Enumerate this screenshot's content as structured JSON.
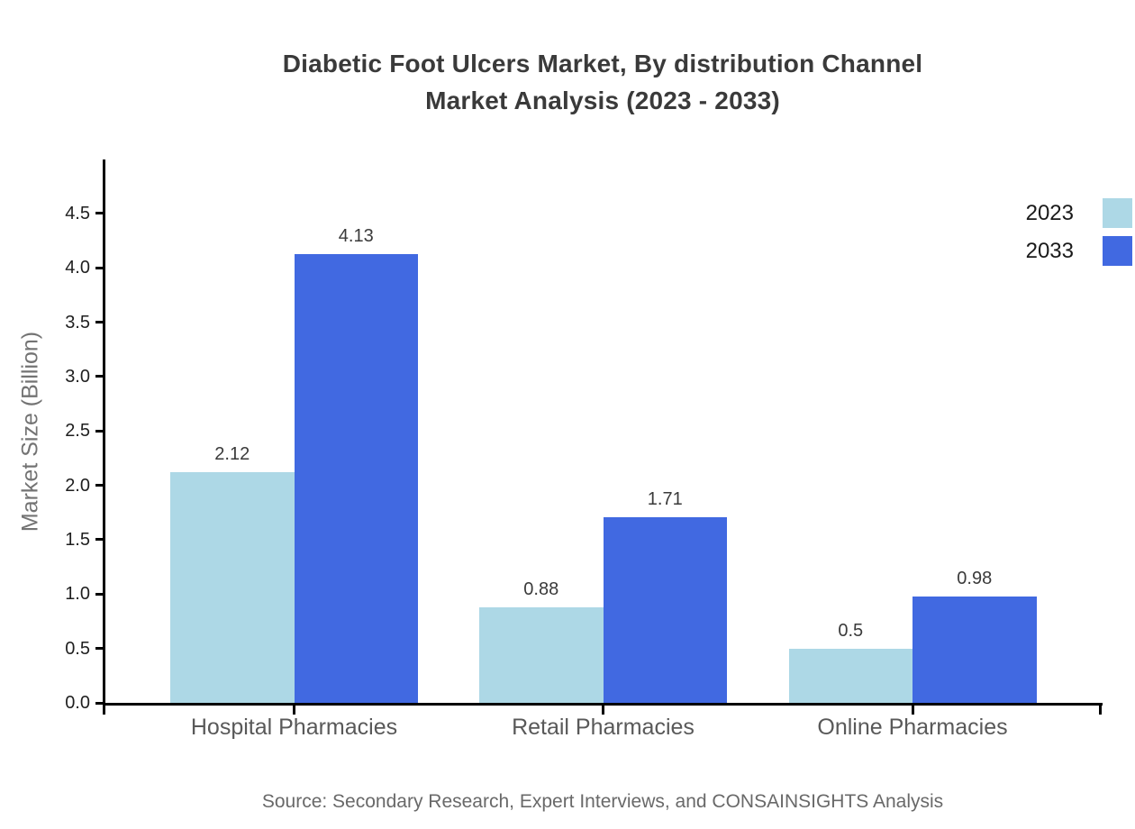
{
  "header": {
    "title_lines": [
      "Diabetic Foot Ulcers Market, By distribution Channel",
      "Market Analysis (2023 - 2033)"
    ]
  },
  "chart_data": {
    "type": "bar",
    "title": "Diabetic Foot Ulcers Market, By distribution Channel Market Analysis (2023 - 2033)",
    "categories": [
      "Hospital Pharmacies",
      "Retail Pharmacies",
      "Online Pharmacies"
    ],
    "series": [
      {
        "name": "2023",
        "color": "#add8e6",
        "values": [
          2.12,
          0.88,
          0.5
        ],
        "value_labels": [
          "2.12",
          "0.88",
          "0.5"
        ]
      },
      {
        "name": "2033",
        "color": "#4169e1",
        "values": [
          4.13,
          1.71,
          0.98
        ],
        "value_labels": [
          "4.13",
          "1.71",
          "0.98"
        ]
      }
    ],
    "xlabel": "",
    "ylabel": "Market Size (Billion)",
    "ylim": [
      0,
      5
    ],
    "yticks": [
      0.0,
      0.5,
      1.0,
      1.5,
      2.0,
      2.5,
      3.0,
      3.5,
      4.0,
      4.5
    ],
    "ytick_labels": [
      "0.0",
      "0.5",
      "1.0",
      "1.5",
      "2.0",
      "2.5",
      "3.0",
      "3.5",
      "4.0",
      "4.5"
    ],
    "grid": false,
    "legend_position": "top-right-outside"
  },
  "footer": {
    "source": "Source: Secondary Research, Expert Interviews, and CONSAINSIGHTS Analysis"
  },
  "colors": {
    "series_2023": "#add8e6",
    "series_2033": "#4169e1",
    "axis_line": "#000000",
    "title_text": "#3a3a3a",
    "tick_label_text": "#1f1f1f",
    "category_label_text": "#595959",
    "y_axis_label_text": "#737373",
    "source_text": "#696969",
    "legend_text": "#1a1a1a",
    "background": "#ffffff"
  }
}
